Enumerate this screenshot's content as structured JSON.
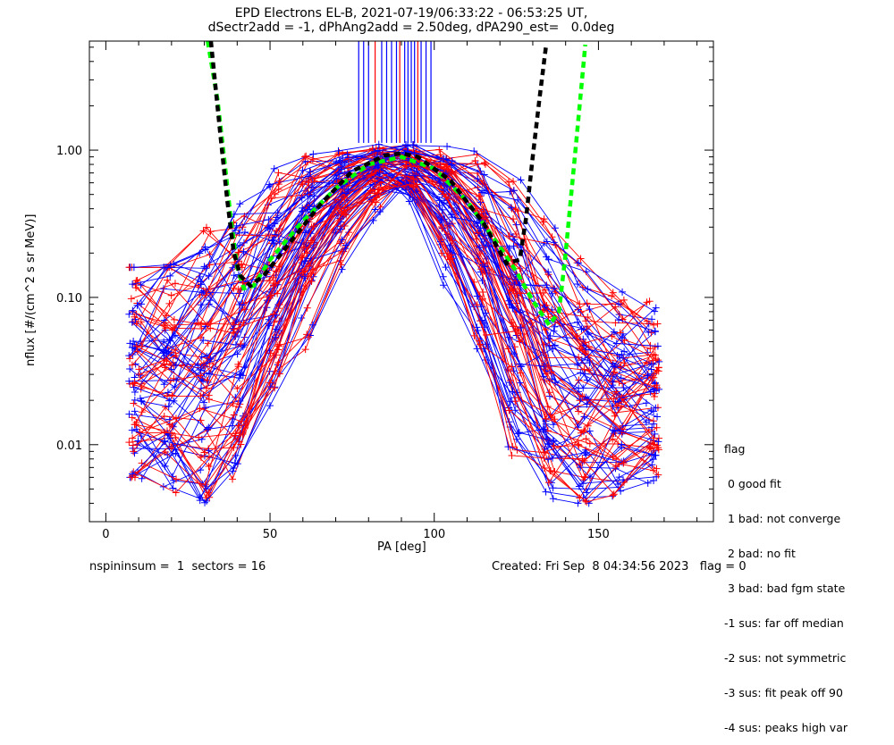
{
  "title_line1": "EPD Electrons EL-B, 2021-07-19/06:33:22 - 06:53:25 UT,",
  "title_line2": "dSectr2add = -1, dPhAng2add = 2.50deg, dPA290_est=   0.0deg",
  "footer_left": "nspininsum =  1  sectors = 16",
  "footer_right": "Created: Fri Sep  8 04:34:56 2023   flag = 0",
  "legend_title": "flag",
  "legend_items": [
    " 0 good fit",
    " 1 bad: not converge",
    " 2 bad: no fit",
    " 3 bad: bad fgm state",
    "-1 sus: far off median",
    "-2 sus: not symmetric",
    "-3 sus: fit peak off 90",
    "-4 sus: peaks high var"
  ],
  "chart_data": {
    "type": "line",
    "title": "EPD Electrons EL-B, 2021-07-19/06:33:22 - 06:53:25 UT,",
    "xlabel": "PA [deg]",
    "ylabel": "nflux [#/(cm^2 s sr MeV)]",
    "xlim": [
      -5,
      185
    ],
    "ylim": [
      0.003,
      5.5
    ],
    "yscale": "log",
    "xticks": [
      0,
      50,
      100,
      150
    ],
    "xtick_labels": [
      "0",
      "50",
      "100",
      "150"
    ],
    "yticks": [
      0.01,
      0.1,
      1.0
    ],
    "ytick_labels": [
      "0.01",
      "0.10",
      "1.00"
    ],
    "colors": {
      "spin_a": "#ff0000",
      "spin_b": "#0000ff",
      "fit_green": "#00ff00",
      "fit_black": "#000000"
    },
    "fit_curves": [
      {
        "color": "#00ff00",
        "x": [
          31,
          34,
          36,
          38,
          40,
          42,
          45,
          50,
          60,
          70,
          80,
          90,
          100,
          110,
          120,
          125,
          130,
          135,
          138,
          140,
          143,
          146
        ],
        "y": [
          5.5,
          2.2,
          0.9,
          0.35,
          0.16,
          0.115,
          0.12,
          0.18,
          0.33,
          0.55,
          0.8,
          0.9,
          0.75,
          0.45,
          0.22,
          0.15,
          0.095,
          0.065,
          0.08,
          0.2,
          1.0,
          5.2
        ]
      },
      {
        "color": "#000000",
        "x": [
          32,
          35,
          37,
          39,
          41,
          44,
          48,
          55,
          65,
          75,
          85,
          90,
          95,
          105,
          115,
          122,
          126,
          128,
          130,
          132,
          134
        ],
        "y": [
          5.5,
          1.2,
          0.45,
          0.2,
          0.14,
          0.12,
          0.14,
          0.22,
          0.42,
          0.72,
          0.92,
          0.95,
          0.9,
          0.62,
          0.32,
          0.17,
          0.18,
          0.35,
          0.9,
          2.2,
          5.0
        ]
      }
    ],
    "envelope": {
      "x": [
        10,
        20,
        30,
        40,
        50,
        60,
        70,
        80,
        90,
        100,
        110,
        120,
        130,
        140,
        150,
        160,
        170
      ],
      "y_median": [
        0.025,
        0.03,
        0.05,
        0.1,
        0.2,
        0.38,
        0.6,
        0.8,
        0.85,
        0.72,
        0.45,
        0.22,
        0.09,
        0.045,
        0.03,
        0.02,
        0.015
      ],
      "y_low": [
        0.006,
        0.005,
        0.004,
        0.007,
        0.02,
        0.08,
        0.22,
        0.45,
        0.65,
        0.4,
        0.13,
        0.03,
        0.006,
        0.004,
        0.004,
        0.005,
        0.006
      ],
      "y_high": [
        0.16,
        0.16,
        0.28,
        0.45,
        0.6,
        0.9,
        0.95,
        1.05,
        1.1,
        1.05,
        0.95,
        0.7,
        0.35,
        0.2,
        0.14,
        0.1,
        0.09
      ]
    },
    "saturation_lines_x": [
      77,
      78.5,
      80,
      82,
      84,
      85.5,
      87,
      88.5,
      89.5,
      91,
      92,
      93,
      94,
      95,
      96,
      97.5,
      99
    ],
    "n_profiles": 90
  }
}
